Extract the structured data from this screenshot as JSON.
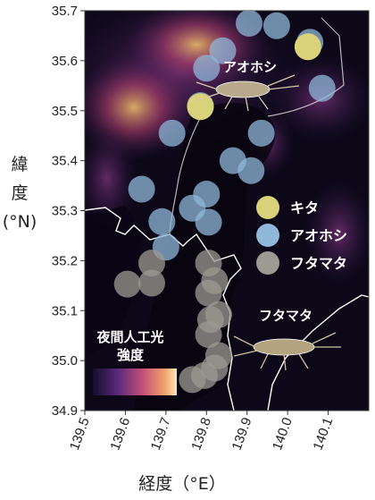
{
  "chart_data": {
    "type": "scatter",
    "xlabel": "経度（°E）",
    "ylabel": "緯度（°N）",
    "xlim": [
      139.5,
      140.2
    ],
    "ylim": [
      34.9,
      35.7
    ],
    "x_ticks": [
      "139.5",
      "139.6",
      "139.7",
      "139.8",
      "139.9",
      "140.0",
      "140.1"
    ],
    "y_ticks": [
      "34.9",
      "35.0",
      "35.1",
      "35.2",
      "35.3",
      "35.4",
      "35.5",
      "35.6",
      "35.7"
    ],
    "colorbar_label": "夜間人工光強度",
    "colors": {
      "キタ": "#d8d27a",
      "アオホシ": "#8fb7d8",
      "フタマタ": "#9c9a92"
    },
    "series": [
      {
        "name": "キタ",
        "points": [
          [
            140.05,
            35.628
          ],
          [
            139.785,
            35.508
          ]
        ]
      },
      {
        "name": "アオホシ",
        "points": [
          [
            139.905,
            35.675
          ],
          [
            139.973,
            35.67
          ],
          [
            140.055,
            35.637
          ],
          [
            139.84,
            35.62
          ],
          [
            140.085,
            35.545
          ],
          [
            139.8,
            35.585
          ],
          [
            139.785,
            35.51
          ],
          [
            139.715,
            35.455
          ],
          [
            139.935,
            35.455
          ],
          [
            139.91,
            35.38
          ],
          [
            139.865,
            35.4
          ],
          [
            139.64,
            35.343
          ],
          [
            139.8,
            35.333
          ],
          [
            139.765,
            35.305
          ],
          [
            139.805,
            35.277
          ],
          [
            139.69,
            35.278
          ],
          [
            139.7,
            35.227
          ]
        ]
      },
      {
        "name": "フタマタ",
        "points": [
          [
            139.665,
            35.195
          ],
          [
            139.805,
            35.195
          ],
          [
            139.82,
            35.16
          ],
          [
            139.665,
            35.155
          ],
          [
            139.605,
            35.153
          ],
          [
            139.805,
            35.135
          ],
          [
            139.83,
            35.092
          ],
          [
            139.81,
            35.082
          ],
          [
            139.805,
            35.052
          ],
          [
            139.83,
            35.01
          ],
          [
            139.82,
            34.985
          ],
          [
            139.795,
            34.97
          ],
          [
            139.765,
            34.962
          ]
        ]
      }
    ],
    "annotations": {
      "upper_species": "アオホシ",
      "lower_species": "フタマタ"
    },
    "legend_placement": "right"
  }
}
